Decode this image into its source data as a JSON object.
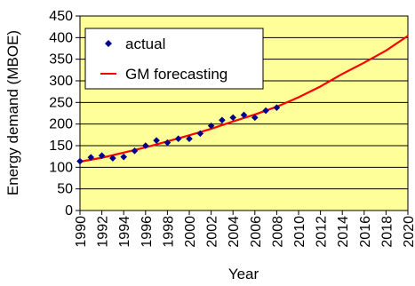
{
  "chart_data": {
    "type": "line",
    "title": "",
    "xlabel": "Year",
    "ylabel": "Energy demand (MBOE)",
    "xlim": [
      1990,
      2020
    ],
    "ylim": [
      0,
      450
    ],
    "x_ticks": [
      "1990",
      "1992",
      "1994",
      "1996",
      "1998",
      "2000",
      "2002",
      "2004",
      "2006",
      "2008",
      "2010",
      "2012",
      "2014",
      "2016",
      "2018",
      "2020"
    ],
    "y_ticks": [
      "0",
      "50",
      "100",
      "150",
      "200",
      "250",
      "300",
      "350",
      "400",
      "450"
    ],
    "grid": "horizontal",
    "legend_position": "top-left",
    "plot_background": "#ffff99",
    "series": [
      {
        "name": "actual",
        "style": "markers",
        "marker": "diamond",
        "color": "#00008b",
        "x": [
          1990,
          1991,
          1992,
          1993,
          1994,
          1995,
          1996,
          1997,
          1998,
          1999,
          2000,
          2001,
          2002,
          2003,
          2004,
          2005,
          2006,
          2007,
          2008
        ],
        "y": [
          114,
          123,
          127,
          121,
          124,
          138,
          150,
          162,
          157,
          166,
          166,
          178,
          196,
          209,
          215,
          221,
          215,
          231,
          238
        ]
      },
      {
        "name": "GM forecasting",
        "style": "line",
        "color": "#ff0000",
        "x": [
          1990,
          1992,
          1994,
          1996,
          1998,
          2000,
          2002,
          2004,
          2006,
          2008,
          2010,
          2012,
          2014,
          2016,
          2018,
          2020
        ],
        "y": [
          113,
          122,
          134,
          146,
          160,
          174,
          189,
          206,
          222,
          240,
          262,
          287,
          316,
          342,
          370,
          404
        ]
      }
    ]
  }
}
